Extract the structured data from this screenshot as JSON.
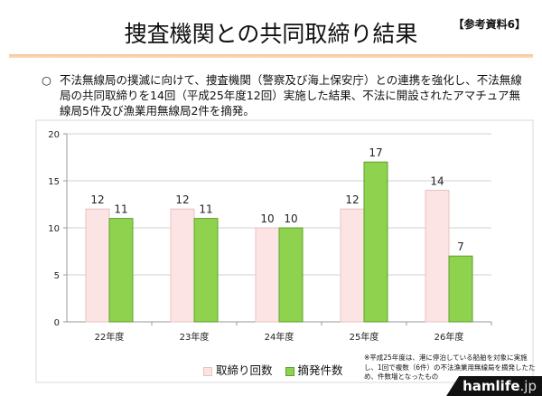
{
  "header": {
    "title": "捜査機関との共同取締り結果",
    "reference": "【参考資料6】"
  },
  "bullet": {
    "mark": "○",
    "text": "不法無線局の撲滅に向けて、捜査機関（警察及び海上保安庁）との連携を強化し、不法無線局の共同取締りを14回（平成25年度12回）実施した結果、不法に開設されたアマチュア無線局5件及び漁業用無線局2件を摘発。"
  },
  "note": "※平成25年度は、港に停泊している船舶を対象に実施し、1回で複数（6件）の不法漁業用無線局を摘発したため、件数増となったもの",
  "logo": {
    "main": "hamlife",
    "suffix": ".jp"
  },
  "colors": {
    "series1": "#fde4e4",
    "series1_edge": "#e8c3c3",
    "series2": "#8ed24e",
    "series2_edge": "#5fa22c"
  },
  "chart_data": {
    "type": "bar",
    "categories": [
      "22年度",
      "23年度",
      "24年度",
      "25年度",
      "26年度"
    ],
    "series": [
      {
        "name": "取締り回数",
        "values": [
          12,
          12,
          10,
          12,
          14
        ]
      },
      {
        "name": "摘発件数",
        "values": [
          11,
          11,
          10,
          17,
          7
        ]
      }
    ],
    "ylim": [
      0,
      20
    ],
    "yticks": [
      "0",
      "5",
      "10",
      "15",
      "20"
    ],
    "grid": true,
    "legend": "bottom"
  }
}
